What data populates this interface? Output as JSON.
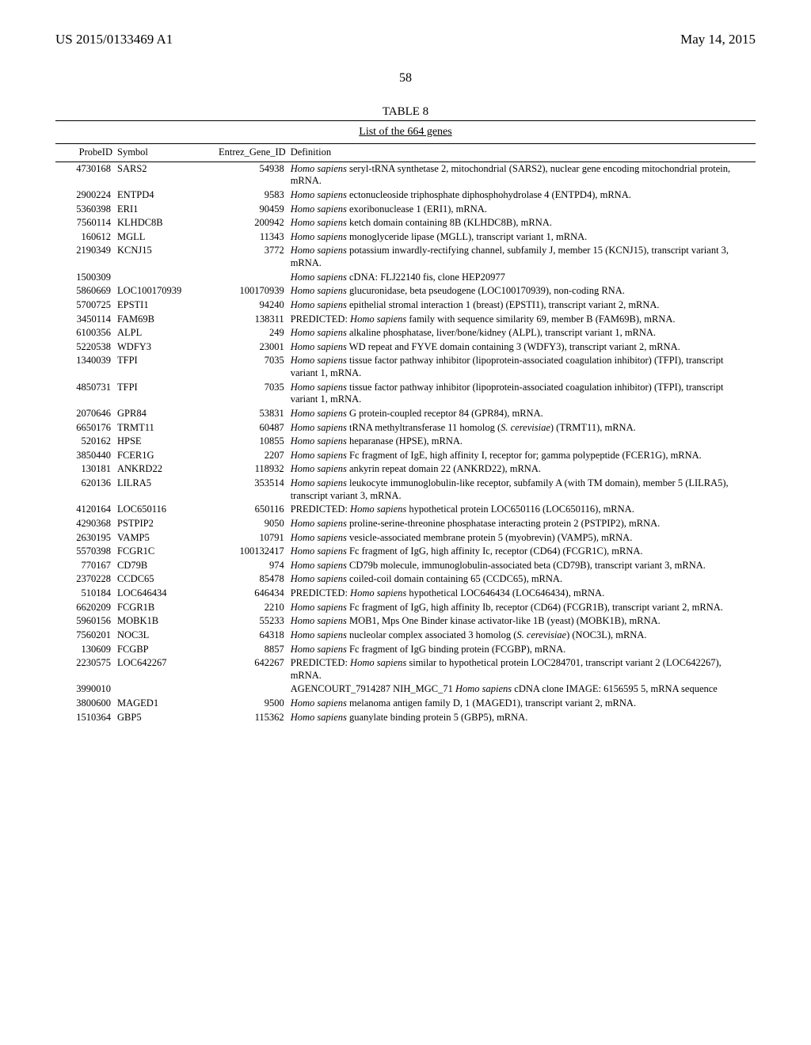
{
  "header": {
    "left": "US 2015/0133469 A1",
    "right": "May 14, 2015"
  },
  "page_number": "58",
  "table": {
    "label": "TABLE 8",
    "title": "List of the 664 genes",
    "columns": {
      "probeid": "ProbeID",
      "symbol": "Symbol",
      "entrez": "Entrez_Gene_ID",
      "definition": "Definition"
    },
    "rows": [
      {
        "probeid": "4730168",
        "symbol": "SARS2",
        "entrez": "54938",
        "def": "Homo sapiens seryl-tRNA synthetase 2, mitochondrial (SARS2), nuclear gene encoding mitochondrial protein, mRNA."
      },
      {
        "probeid": "2900224",
        "symbol": "ENTPD4",
        "entrez": "9583",
        "def": "Homo sapiens ectonucleoside triphosphate diphosphohydrolase 4 (ENTPD4), mRNA."
      },
      {
        "probeid": "5360398",
        "symbol": "ERI1",
        "entrez": "90459",
        "def": "Homo sapiens exoribonuclease 1 (ERI1), mRNA."
      },
      {
        "probeid": "7560114",
        "symbol": "KLHDC8B",
        "entrez": "200942",
        "def": "Homo sapiens ketch domain containing 8B (KLHDC8B), mRNA."
      },
      {
        "probeid": "160612",
        "symbol": "MGLL",
        "entrez": "11343",
        "def": "Homo sapiens monoglyceride lipase (MGLL), transcript variant 1, mRNA."
      },
      {
        "probeid": "2190349",
        "symbol": "KCNJ15",
        "entrez": "3772",
        "def": "Homo sapiens potassium inwardly-rectifying channel, subfamily J, member 15 (KCNJ15), transcript variant 3, mRNA."
      },
      {
        "probeid": "1500309",
        "symbol": "",
        "entrez": "",
        "def": "Homo sapiens cDNA: FLJ22140 fis, clone HEP20977"
      },
      {
        "probeid": "5860669",
        "symbol": "LOC100170939",
        "entrez": "100170939",
        "def": "Homo sapiens glucuronidase, beta pseudogene (LOC100170939), non-coding RNA."
      },
      {
        "probeid": "5700725",
        "symbol": "EPSTI1",
        "entrez": "94240",
        "def": "Homo sapiens epithelial stromal interaction 1 (breast) (EPSTI1), transcript variant 2, mRNA."
      },
      {
        "probeid": "3450114",
        "symbol": "FAM69B",
        "entrez": "138311",
        "def": "PREDICTED: Homo sapiens family with sequence similarity 69, member B (FAM69B), mRNA."
      },
      {
        "probeid": "6100356",
        "symbol": "ALPL",
        "entrez": "249",
        "def": "Homo sapiens alkaline phosphatase, liver/bone/kidney (ALPL), transcript variant 1, mRNA."
      },
      {
        "probeid": "5220538",
        "symbol": "WDFY3",
        "entrez": "23001",
        "def": "Homo sapiens WD repeat and FYVE domain containing 3 (WDFY3), transcript variant 2, mRNA."
      },
      {
        "probeid": "1340039",
        "symbol": "TFPI",
        "entrez": "7035",
        "def": "Homo sapiens tissue factor pathway inhibitor (lipoprotein-associated coagulation inhibitor) (TFPI), transcript variant 1, mRNA."
      },
      {
        "probeid": "4850731",
        "symbol": "TFPI",
        "entrez": "7035",
        "def": "Homo sapiens tissue factor pathway inhibitor (lipoprotein-associated coagulation inhibitor) (TFPI), transcript variant 1, mRNA."
      },
      {
        "probeid": "2070646",
        "symbol": "GPR84",
        "entrez": "53831",
        "def": "Homo sapiens G protein-coupled receptor 84 (GPR84), mRNA."
      },
      {
        "probeid": "6650176",
        "symbol": "TRMT11",
        "entrez": "60487",
        "def": "Homo sapiens tRNA methyltransferase 11 homolog (S. cerevisiae) (TRMT11), mRNA."
      },
      {
        "probeid": "520162",
        "symbol": "HPSE",
        "entrez": "10855",
        "def": "Homo sapiens heparanase (HPSE), mRNA."
      },
      {
        "probeid": "3850440",
        "symbol": "FCER1G",
        "entrez": "2207",
        "def": "Homo sapiens Fc fragment of IgE, high affinity I, receptor for; gamma polypeptide (FCER1G), mRNA."
      },
      {
        "probeid": "130181",
        "symbol": "ANKRD22",
        "entrez": "118932",
        "def": "Homo sapiens ankyrin repeat domain 22 (ANKRD22), mRNA."
      },
      {
        "probeid": "620136",
        "symbol": "LILRA5",
        "entrez": "353514",
        "def": "Homo sapiens leukocyte immunoglobulin-like receptor, subfamily A (with TM domain), member 5 (LILRA5), transcript variant 3, mRNA."
      },
      {
        "probeid": "4120164",
        "symbol": "LOC650116",
        "entrez": "650116",
        "def": "PREDICTED: Homo sapiens hypothetical protein LOC650116 (LOC650116), mRNA."
      },
      {
        "probeid": "4290368",
        "symbol": "PSTPIP2",
        "entrez": "9050",
        "def": "Homo sapiens proline-serine-threonine phosphatase interacting protein 2 (PSTPIP2), mRNA."
      },
      {
        "probeid": "2630195",
        "symbol": "VAMP5",
        "entrez": "10791",
        "def": "Homo sapiens vesicle-associated membrane protein 5 (myobrevin) (VAMP5), mRNA."
      },
      {
        "probeid": "5570398",
        "symbol": "FCGR1C",
        "entrez": "100132417",
        "def": "Homo sapiens Fc fragment of IgG, high affinity Ic, receptor (CD64) (FCGR1C), mRNA."
      },
      {
        "probeid": "770167",
        "symbol": "CD79B",
        "entrez": "974",
        "def": "Homo sapiens CD79b molecule, immunoglobulin-associated beta (CD79B), transcript variant 3, mRNA."
      },
      {
        "probeid": "2370228",
        "symbol": "CCDC65",
        "entrez": "85478",
        "def": "Homo sapiens coiled-coil domain containing 65 (CCDC65), mRNA."
      },
      {
        "probeid": "510184",
        "symbol": "LOC646434",
        "entrez": "646434",
        "def": "PREDICTED: Homo sapiens hypothetical LOC646434 (LOC646434), mRNA."
      },
      {
        "probeid": "6620209",
        "symbol": "FCGR1B",
        "entrez": "2210",
        "def": "Homo sapiens Fc fragment of IgG, high affinity Ib, receptor (CD64) (FCGR1B), transcript variant 2, mRNA."
      },
      {
        "probeid": "5960156",
        "symbol": "MOBK1B",
        "entrez": "55233",
        "def": "Homo sapiens MOB1, Mps One Binder kinase activator-like 1B (yeast) (MOBK1B), mRNA."
      },
      {
        "probeid": "7560201",
        "symbol": "NOC3L",
        "entrez": "64318",
        "def": "Homo sapiens nucleolar complex associated 3 homolog (S. cerevisiae) (NOC3L), mRNA."
      },
      {
        "probeid": "130609",
        "symbol": "FCGBP",
        "entrez": "8857",
        "def": "Homo sapiens Fc fragment of IgG binding protein (FCGBP), mRNA."
      },
      {
        "probeid": "2230575",
        "symbol": "LOC642267",
        "entrez": "642267",
        "def": "PREDICTED: Homo sapiens similar to hypothetical protein LOC284701, transcript variant 2 (LOC642267), mRNA."
      },
      {
        "probeid": "3990010",
        "symbol": "",
        "entrez": "",
        "def": "AGENCOURT_7914287 NIH_MGC_71 Homo sapiens cDNA clone IMAGE: 6156595 5, mRNA sequence"
      },
      {
        "probeid": "3800600",
        "symbol": "MAGED1",
        "entrez": "9500",
        "def": "Homo sapiens melanoma antigen family D, 1 (MAGED1), transcript variant 2, mRNA."
      },
      {
        "probeid": "1510364",
        "symbol": "GBP5",
        "entrez": "115362",
        "def": "Homo sapiens guanylate binding protein 5 (GBP5), mRNA."
      }
    ]
  }
}
